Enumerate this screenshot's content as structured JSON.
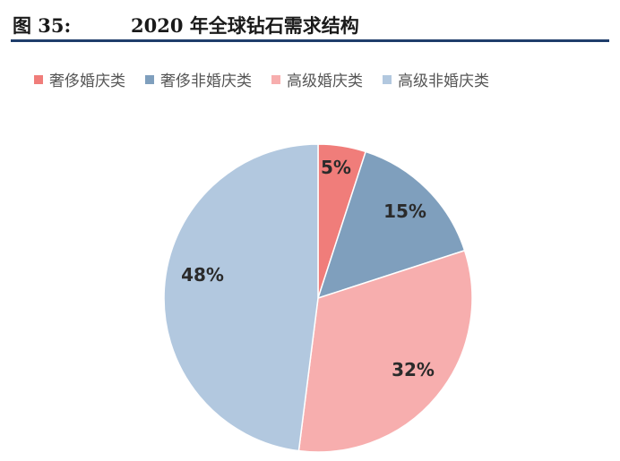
{
  "figure": {
    "label": "图 35:",
    "title": "2020 年全球钻石需求结构"
  },
  "chart_data": {
    "type": "pie",
    "start_angle_deg": 0,
    "direction": "clockwise",
    "legend_position": "top",
    "slices": [
      {
        "name": "奢侈婚庆类",
        "value": 5,
        "label": "5%",
        "color": "#f07d7a"
      },
      {
        "name": "奢侈非婚庆类",
        "value": 15,
        "label": "15%",
        "color": "#7f9fbd"
      },
      {
        "name": "高级婚庆类",
        "value": 32,
        "label": "32%",
        "color": "#f7aeae"
      },
      {
        "name": "高级非婚庆类",
        "value": 48,
        "label": "48%",
        "color": "#b2c8df"
      }
    ]
  }
}
